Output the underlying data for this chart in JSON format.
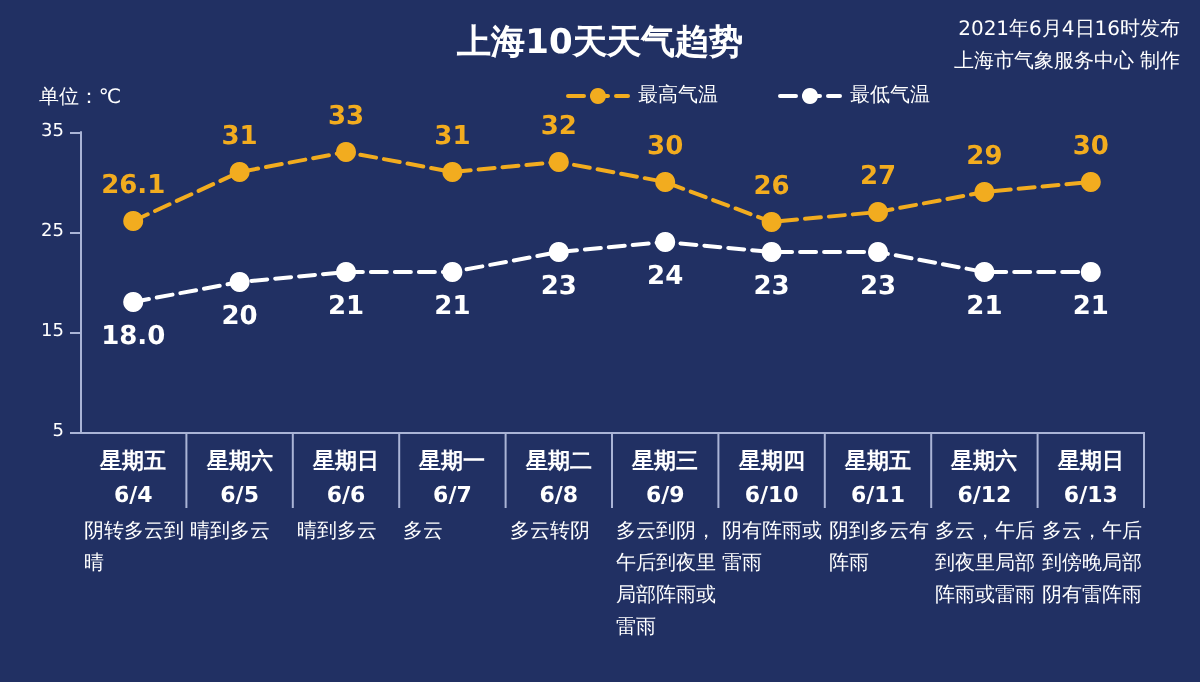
{
  "chart_data": {
    "type": "line",
    "title": "上海10天天气趋势",
    "ylabel": "单位：℃",
    "annotations": [
      "2021年6月4日16时发布",
      "上海市气象服务中心 制作",
      "阴转多云到晴",
      "晴到多云",
      "晴到多云",
      "多云",
      "多云转阴",
      "多云到阴，午后到夜里局部阵雨或雷雨",
      "阴有阵雨或雷雨",
      "阴到多云有阵雨",
      "多云，午后到夜里局部阵雨或雷雨",
      "多云，午后到傍晚局部阴有雷阵雨"
    ],
    "categories": [
      "星期五\n6/4",
      "星期六\n6/5",
      "星期日\n6/6",
      "星期一\n6/7",
      "星期二\n6/8",
      "星期三\n6/9",
      "星期四\n6/10",
      "星期五\n6/11",
      "星期六\n6/12",
      "星期日\n6/13"
    ],
    "series": [
      {
        "name": "最高气温",
        "color": "#f2ac1f",
        "values": [
          26.1,
          31,
          33,
          31,
          32,
          30,
          26,
          27,
          29,
          30
        ],
        "value_labels": [
          "26.1",
          "31",
          "33",
          "31",
          "32",
          "30",
          "26",
          "27",
          "29",
          "30"
        ]
      },
      {
        "name": "最低气温",
        "color": "#ffffff",
        "values": [
          18.0,
          20,
          21,
          21,
          23,
          24,
          23,
          23,
          21,
          21
        ],
        "value_labels": [
          "18.0",
          "20",
          "21",
          "21",
          "23",
          "24",
          "23",
          "23",
          "21",
          "21"
        ]
      }
    ],
    "ylim": [
      5,
      35
    ],
    "yticks": [
      5,
      15,
      25,
      35
    ],
    "grid": false,
    "legend": "top right",
    "marker": "circle",
    "line_style": "dashed"
  }
}
